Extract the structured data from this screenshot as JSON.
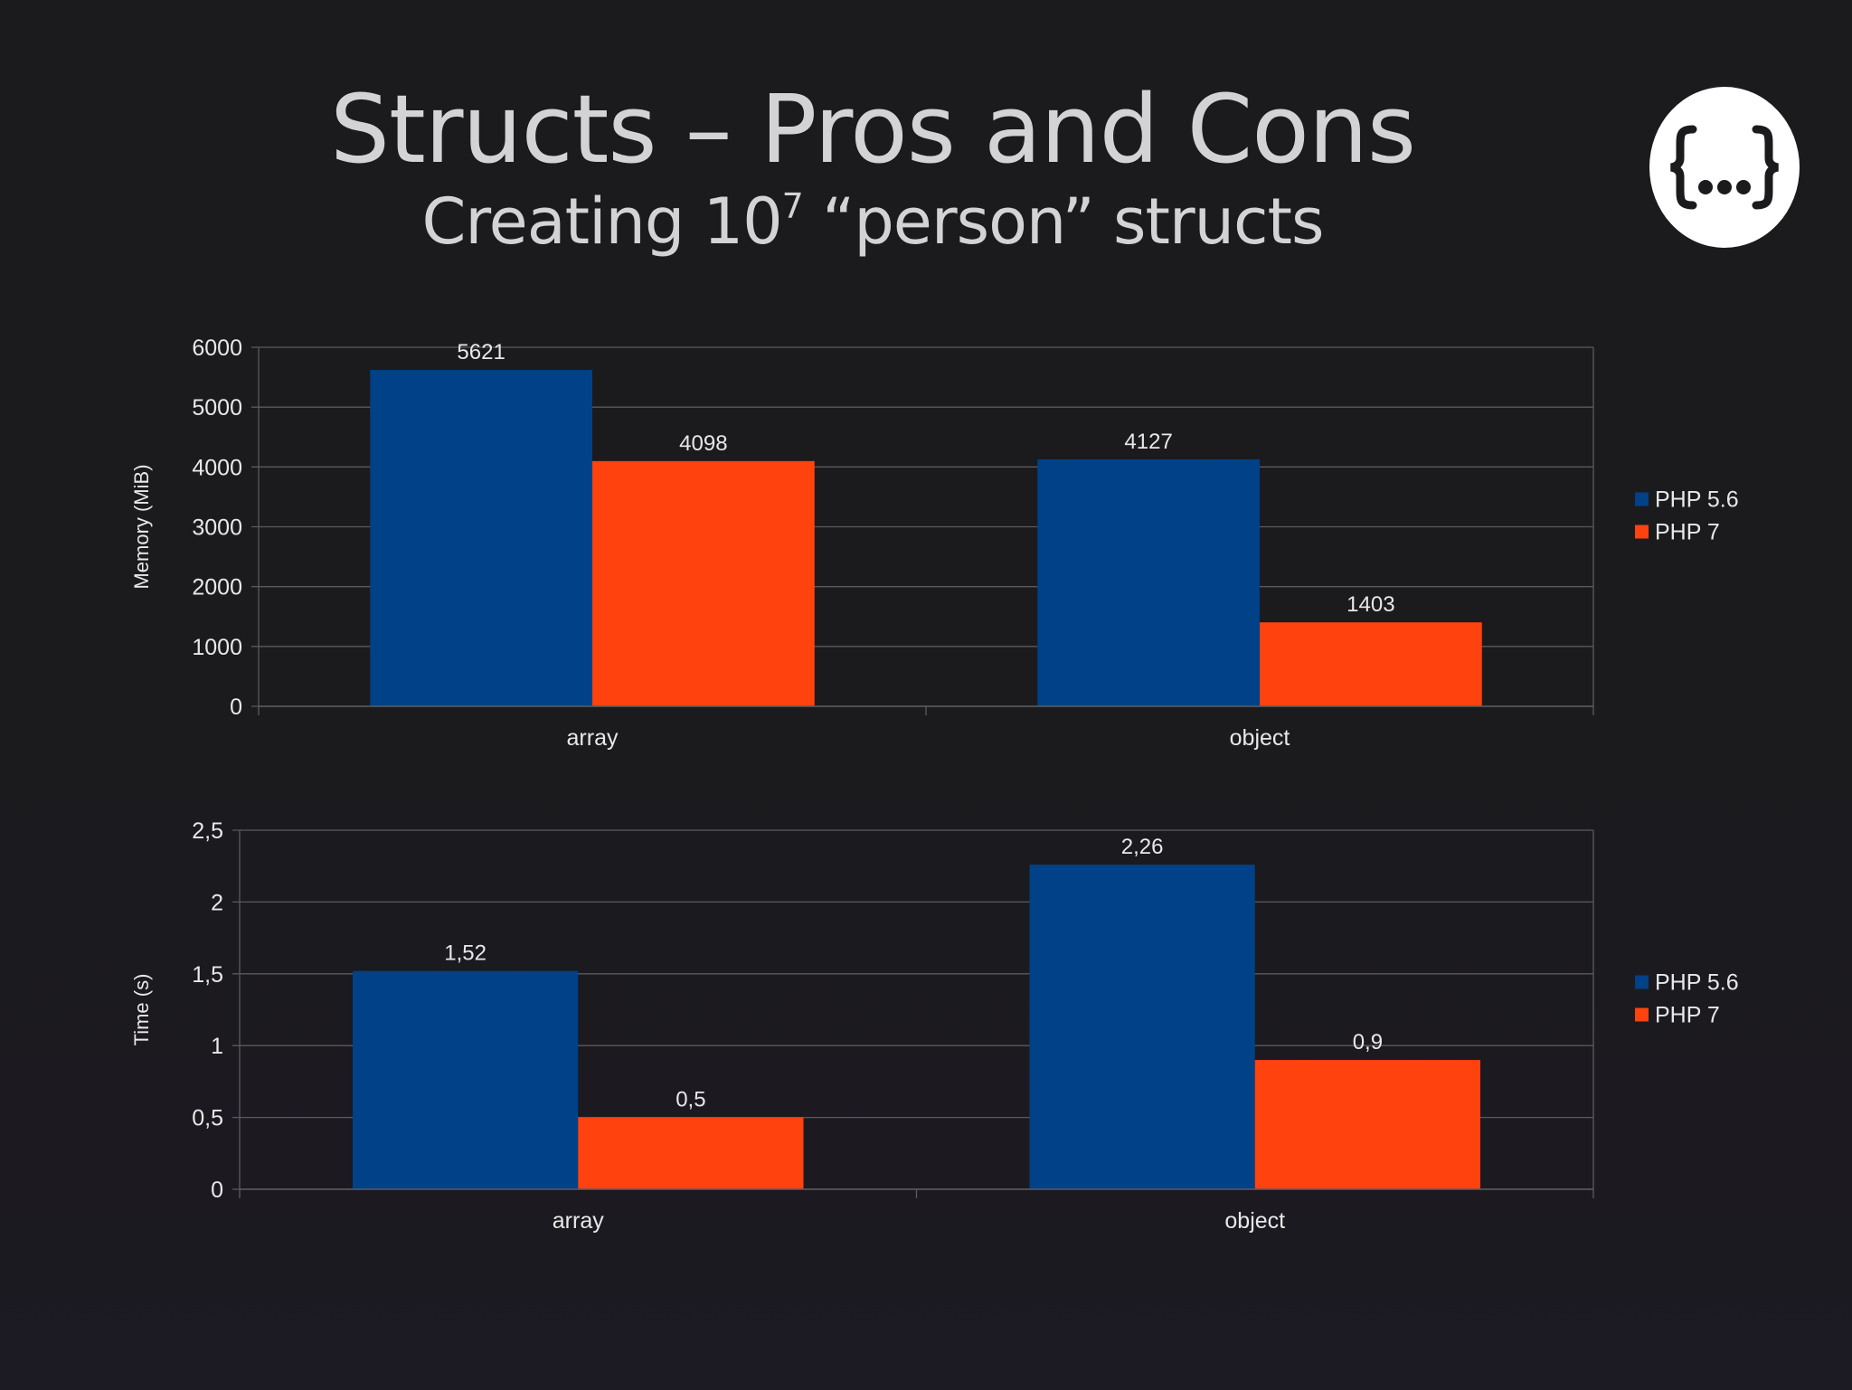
{
  "slide": {
    "title": "Structs – Pros and Cons",
    "subtitle_main": "Creating 10",
    "subtitle_exponent": "7",
    "subtitle_rest": " “person” structs",
    "logo_icon": "curly-braces-ellipsis-icon"
  },
  "colors": {
    "background": "#1b1a1d",
    "php56": "#004187",
    "php7": "#ff420e",
    "text": "#e8e8e8",
    "grid": "#5a5a5e"
  },
  "chart_data": [
    {
      "type": "bar",
      "categories": [
        "array",
        "object"
      ],
      "series": [
        {
          "name": "PHP 5.6",
          "values": [
            5621,
            4127
          ],
          "labels": [
            "5621",
            "4127"
          ]
        },
        {
          "name": "PHP 7",
          "values": [
            4098,
            1403
          ],
          "labels": [
            "4098",
            "1403"
          ]
        }
      ],
      "ylabel": "Memory (MiB)",
      "ylim": [
        0,
        6000
      ],
      "yticks": [
        "0",
        "1000",
        "2000",
        "3000",
        "4000",
        "5000",
        "6000"
      ],
      "grid": true,
      "legend": "right"
    },
    {
      "type": "bar",
      "categories": [
        "array",
        "object"
      ],
      "series": [
        {
          "name": "PHP 5.6",
          "values": [
            1.52,
            2.26
          ],
          "labels": [
            "1,52",
            "2,26"
          ]
        },
        {
          "name": "PHP 7",
          "values": [
            0.5,
            0.9
          ],
          "labels": [
            "0,5",
            "0,9"
          ]
        }
      ],
      "ylabel": "Time (s)",
      "ylim": [
        0,
        2.5
      ],
      "yticks": [
        "0",
        "0,5",
        "1",
        "1,5",
        "2",
        "2,5"
      ],
      "grid": true,
      "legend": "right"
    }
  ]
}
